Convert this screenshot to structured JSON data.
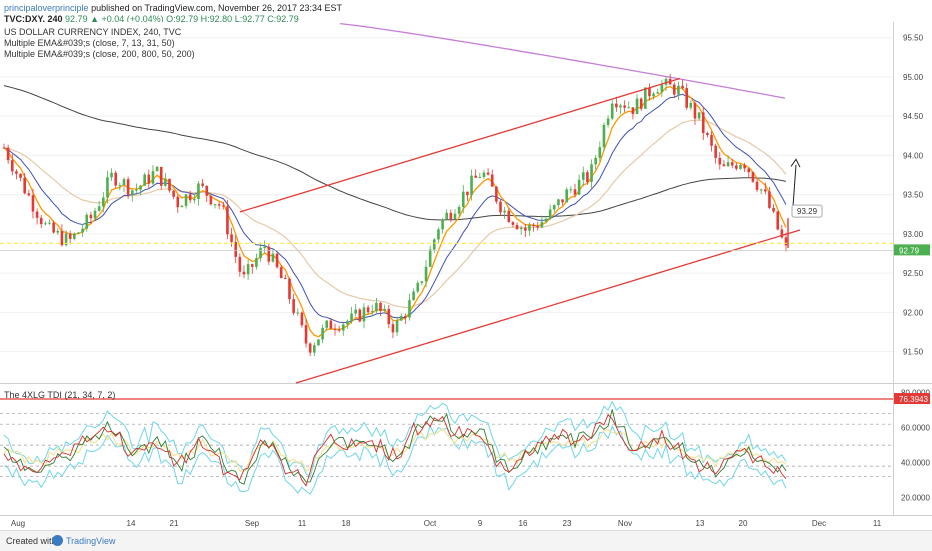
{
  "header": {
    "author": "principaloverprinciple",
    "published": "published on TradingView.com, November 26, 2017 23:34 EST",
    "symbol": "TVC:DXY, 240",
    "last": "92.79",
    "change": "+0.04 (+0.04%)",
    "ohlc_o": "O:92.79",
    "ohlc_h": "H:92.80",
    "ohlc_l": "L:92.77",
    "ohlc_c": "C:92.79"
  },
  "legend": {
    "title": "US DOLLAR CURRENCY INDEX, 240, TVC",
    "ema1": "Multiple EMA&#039;s (close, 7, 13, 31, 50)",
    "ema2": "Multiple EMA&#039;s (close, 200, 800, 50, 200)",
    "tdi": "The 4XLG TDI (21, 34, 7, 2)"
  },
  "footer": {
    "created": "Created with",
    "brand": "TradingView"
  },
  "colors": {
    "candle_up": "#4caf50",
    "candle_down": "#e53935",
    "ema_fast": "#ff9800",
    "ema_mid": "#3f51b5",
    "ema_slow": "#e6c9a8",
    "ema_200": "#444444",
    "ema_800": "#c77dd7",
    "channel": "#e53935",
    "support": "#ffeb3b",
    "band": "#6fd6e8"
  },
  "chart_data": [
    {
      "type": "candlestick",
      "title": "US DOLLAR CURRENCY INDEX, 240, TVC",
      "y_ticks": [
        "95.50",
        "95.00",
        "94.50",
        "94.00",
        "93.50",
        "93.00",
        "92.50",
        "92.00",
        "91.50"
      ],
      "ylim": [
        91.1,
        95.7
      ],
      "x_ticks": [
        "Aug",
        "14",
        "21",
        "Sep",
        "11",
        "18",
        "Oct",
        "9",
        "16",
        "23",
        "Nov",
        "13",
        "20",
        "Dec",
        "11"
      ],
      "close_path": [
        {
          "t": 0,
          "v": 94.1
        },
        {
          "t": 1,
          "v": 93.55
        },
        {
          "t": 2,
          "v": 93.05
        },
        {
          "t": 3,
          "v": 92.9
        },
        {
          "t": 4,
          "v": 93.2
        },
        {
          "t": 5,
          "v": 93.75
        },
        {
          "t": 6,
          "v": 93.55
        },
        {
          "t": 7,
          "v": 93.8
        },
        {
          "t": 8,
          "v": 93.4
        },
        {
          "t": 9,
          "v": 93.6
        },
        {
          "t": 10,
          "v": 93.35
        },
        {
          "t": 11,
          "v": 92.4
        },
        {
          "t": 12,
          "v": 92.85
        },
        {
          "t": 13,
          "v": 92.3
        },
        {
          "t": 14,
          "v": 91.55
        },
        {
          "t": 15,
          "v": 91.85
        },
        {
          "t": 16,
          "v": 91.9
        },
        {
          "t": 17,
          "v": 92.1
        },
        {
          "t": 18,
          "v": 91.8
        },
        {
          "t": 19,
          "v": 92.25
        },
        {
          "t": 20,
          "v": 93.1
        },
        {
          "t": 21,
          "v": 93.45
        },
        {
          "t": 22,
          "v": 93.8
        },
        {
          "t": 23,
          "v": 93.3
        },
        {
          "t": 24,
          "v": 93.05
        },
        {
          "t": 25,
          "v": 93.2
        },
        {
          "t": 26,
          "v": 93.55
        },
        {
          "t": 27,
          "v": 93.75
        },
        {
          "t": 28,
          "v": 94.75
        },
        {
          "t": 29,
          "v": 94.6
        },
        {
          "t": 30,
          "v": 94.9
        },
        {
          "t": 31,
          "v": 94.85
        },
        {
          "t": 32,
          "v": 94.45
        },
        {
          "t": 33,
          "v": 93.8
        },
        {
          "t": 34,
          "v": 93.95
        },
        {
          "t": 35,
          "v": 93.5
        },
        {
          "t": 36,
          "v": 92.79
        }
      ],
      "last_price": "92.79",
      "callout": "93.29",
      "annotations": [
        "ascending channel",
        "support line 92.88",
        "projection arrow up"
      ]
    },
    {
      "type": "line",
      "title": "The 4XLG TDI (21, 34, 7, 2)",
      "y_ticks": [
        "80.0000",
        "60.0000",
        "40.0000",
        "20.0000"
      ],
      "ylim": [
        10,
        85
      ],
      "upper_level": "76.3943",
      "levels": [
        68,
        62,
        50,
        38,
        32
      ]
    }
  ]
}
